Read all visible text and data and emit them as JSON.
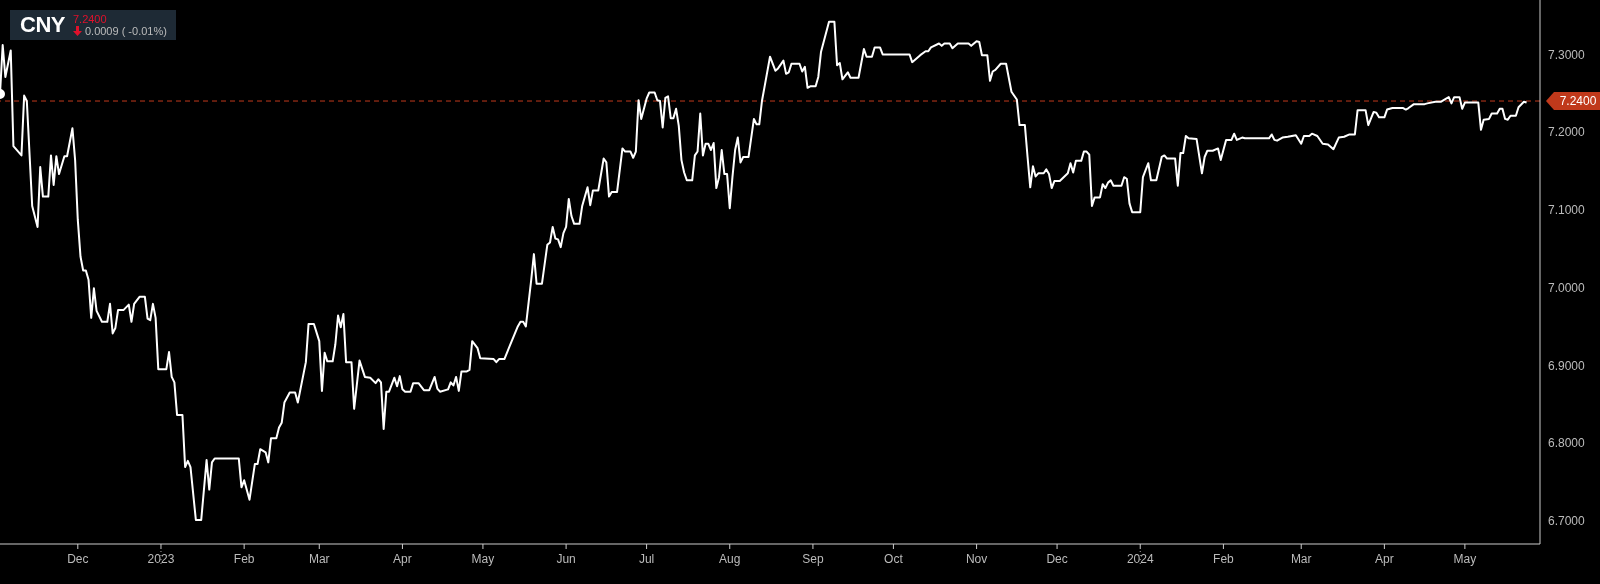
{
  "chart_data": {
    "type": "line",
    "title": "CNY",
    "subtitle": "7.2400",
    "annotations": [
      "0.0009 ( -0.01%)"
    ],
    "xlim": [
      "2022-11-02",
      "2024-05-29"
    ],
    "xticks": [
      {
        "value": "2022-12-01",
        "label": "Dec"
      },
      {
        "value": "2023-01-01",
        "label": "2023"
      },
      {
        "value": "2023-02-01",
        "label": "Feb"
      },
      {
        "value": "2023-03-01",
        "label": "Mar"
      },
      {
        "value": "2023-04-01",
        "label": "Apr"
      },
      {
        "value": "2023-05-01",
        "label": "May"
      },
      {
        "value": "2023-06-01",
        "label": "Jun"
      },
      {
        "value": "2023-07-01",
        "label": "Jul"
      },
      {
        "value": "2023-08-01",
        "label": "Aug"
      },
      {
        "value": "2023-09-01",
        "label": "Sep"
      },
      {
        "value": "2023-10-01",
        "label": "Oct"
      },
      {
        "value": "2023-11-01",
        "label": "Nov"
      },
      {
        "value": "2023-12-01",
        "label": "Dec"
      },
      {
        "value": "2024-01-01",
        "label": "2024"
      },
      {
        "value": "2024-02-01",
        "label": "Feb"
      },
      {
        "value": "2024-03-01",
        "label": "Mar"
      },
      {
        "value": "2024-04-01",
        "label": "Apr"
      },
      {
        "value": "2024-05-01",
        "label": "May"
      }
    ],
    "ylim": [
      6.67,
      7.37
    ],
    "yticks": [
      {
        "value": 6.7,
        "label": "6.7000"
      },
      {
        "value": 6.8,
        "label": "6.8000"
      },
      {
        "value": 6.9,
        "label": "6.9000"
      },
      {
        "value": 7.0,
        "label": "7.0000"
      },
      {
        "value": 7.1,
        "label": "7.1000"
      },
      {
        "value": 7.2,
        "label": "7.2000"
      },
      {
        "value": 7.3,
        "label": "7.3000"
      }
    ],
    "ref_lines": [
      {
        "axis": "y",
        "value": 7.24,
        "label": "7.2400",
        "color": "#c0391b",
        "line_style": "dashed"
      }
    ],
    "series": [
      {
        "color": "#ffffff",
        "x": [
          "2022-11-02",
          "2022-11-03",
          "2022-11-04",
          "2022-11-06",
          "2022-11-07",
          "2022-11-10",
          "2022-11-11",
          "2022-11-12",
          "2022-11-14",
          "2022-11-16",
          "2022-11-17",
          "2022-11-18",
          "2022-11-20",
          "2022-11-21",
          "2022-11-22",
          "2022-11-23",
          "2022-11-24",
          "2022-11-26",
          "2022-11-27",
          "2022-11-29",
          "2022-11-30",
          "2022-12-01",
          "2022-12-02",
          "2022-12-03",
          "2022-12-04",
          "2022-12-05",
          "2022-12-06",
          "2022-12-07",
          "2022-12-08",
          "2022-12-10",
          "2022-12-12",
          "2022-12-13",
          "2022-12-14",
          "2022-12-15",
          "2022-12-16",
          "2022-12-18",
          "2022-12-20",
          "2022-12-21",
          "2022-12-22",
          "2022-12-24",
          "2022-12-26",
          "2022-12-27",
          "2022-12-28",
          "2022-12-29",
          "2022-12-30",
          "2022-12-31",
          "2023-01-03",
          "2023-01-04",
          "2023-01-05",
          "2023-01-06",
          "2023-01-07",
          "2023-01-09",
          "2023-01-10",
          "2023-01-11",
          "2023-01-12",
          "2023-01-14",
          "2023-01-16",
          "2023-01-18",
          "2023-01-19",
          "2023-01-20",
          "2023-01-21",
          "2023-01-30",
          "2023-01-31",
          "2023-02-01",
          "2023-02-03",
          "2023-02-05",
          "2023-02-06",
          "2023-02-07",
          "2023-02-09",
          "2023-02-10",
          "2023-02-11",
          "2023-02-13",
          "2023-02-14",
          "2023-02-15",
          "2023-02-16",
          "2023-02-18",
          "2023-02-20",
          "2023-02-21",
          "2023-02-24",
          "2023-02-25",
          "2023-02-27",
          "2023-03-01",
          "2023-03-02",
          "2023-03-03",
          "2023-03-04",
          "2023-03-06",
          "2023-03-07",
          "2023-03-08",
          "2023-03-09",
          "2023-03-10",
          "2023-03-11",
          "2023-03-13",
          "2023-03-14",
          "2023-03-16",
          "2023-03-18",
          "2023-03-20",
          "2023-03-22",
          "2023-03-23",
          "2023-03-24",
          "2023-03-25",
          "2023-03-26",
          "2023-03-27",
          "2023-03-29",
          "2023-03-30",
          "2023-03-31",
          "2023-04-01",
          "2023-04-02",
          "2023-04-04",
          "2023-04-05",
          "2023-04-07",
          "2023-04-09",
          "2023-04-11",
          "2023-04-13",
          "2023-04-14",
          "2023-04-15",
          "2023-04-18",
          "2023-04-19",
          "2023-04-20",
          "2023-04-21",
          "2023-04-22",
          "2023-04-23",
          "2023-04-25",
          "2023-04-26",
          "2023-04-27",
          "2023-04-29",
          "2023-04-30",
          "2023-05-05",
          "2023-05-06",
          "2023-05-07",
          "2023-05-09",
          "2023-05-11",
          "2023-05-14",
          "2023-05-15",
          "2023-05-16",
          "2023-05-17",
          "2023-05-19",
          "2023-05-20",
          "2023-05-21",
          "2023-05-23",
          "2023-05-25",
          "2023-05-26",
          "2023-05-27",
          "2023-05-28",
          "2023-05-29",
          "2023-05-30",
          "2023-05-31",
          "2023-06-01",
          "2023-06-02",
          "2023-06-03",
          "2023-06-04",
          "2023-06-06",
          "2023-06-07",
          "2023-06-09",
          "2023-06-10",
          "2023-06-11",
          "2023-06-13",
          "2023-06-15",
          "2023-06-16",
          "2023-06-17",
          "2023-06-18",
          "2023-06-20",
          "2023-06-22",
          "2023-06-23",
          "2023-06-25",
          "2023-06-26",
          "2023-06-27",
          "2023-06-28",
          "2023-06-29",
          "2023-07-01",
          "2023-07-02",
          "2023-07-04",
          "2023-07-05",
          "2023-07-06",
          "2023-07-07",
          "2023-07-08",
          "2023-07-09",
          "2023-07-10",
          "2023-07-11",
          "2023-07-12",
          "2023-07-13",
          "2023-07-14",
          "2023-07-15",
          "2023-07-16",
          "2023-07-18",
          "2023-07-19",
          "2023-07-20",
          "2023-07-21",
          "2023-07-22",
          "2023-07-23",
          "2023-07-24",
          "2023-07-25",
          "2023-07-26",
          "2023-07-27",
          "2023-07-28",
          "2023-07-29",
          "2023-07-30",
          "2023-07-31",
          "2023-08-01",
          "2023-08-02",
          "2023-08-03",
          "2023-08-04",
          "2023-08-05",
          "2023-08-06",
          "2023-08-08",
          "2023-08-10",
          "2023-08-11",
          "2023-08-12",
          "2023-08-13",
          "2023-08-16",
          "2023-08-18",
          "2023-08-19",
          "2023-08-21",
          "2023-08-22",
          "2023-08-23",
          "2023-08-24",
          "2023-08-27",
          "2023-08-28",
          "2023-08-29",
          "2023-08-30",
          "2023-08-31",
          "2023-09-02",
          "2023-09-03",
          "2023-09-04",
          "2023-09-07",
          "2023-09-09",
          "2023-09-10",
          "2023-09-11",
          "2023-09-12",
          "2023-09-14",
          "2023-09-15",
          "2023-09-18",
          "2023-09-20",
          "2023-09-21",
          "2023-09-23",
          "2023-09-24",
          "2023-09-26",
          "2023-09-27",
          "2023-10-07",
          "2023-10-08",
          "2023-10-11",
          "2023-10-13",
          "2023-10-14",
          "2023-10-15",
          "2023-10-18",
          "2023-10-19",
          "2023-10-20",
          "2023-10-22",
          "2023-10-23",
          "2023-10-25",
          "2023-10-29",
          "2023-10-30",
          "2023-11-01",
          "2023-11-02",
          "2023-11-03",
          "2023-11-05",
          "2023-11-06",
          "2023-11-07",
          "2023-11-08",
          "2023-11-10",
          "2023-11-12",
          "2023-11-14",
          "2023-11-16",
          "2023-11-17",
          "2023-11-19",
          "2023-11-20",
          "2023-11-21",
          "2023-11-22",
          "2023-11-23",
          "2023-11-24",
          "2023-11-26",
          "2023-11-27",
          "2023-11-28",
          "2023-11-29",
          "2023-11-30",
          "2023-12-02",
          "2023-12-05",
          "2023-12-06",
          "2023-12-07",
          "2023-12-08",
          "2023-12-10",
          "2023-12-11",
          "2023-12-12",
          "2023-12-13",
          "2023-12-14",
          "2023-12-15",
          "2023-12-17",
          "2023-12-18",
          "2023-12-19",
          "2023-12-20",
          "2023-12-21",
          "2023-12-22",
          "2023-12-25",
          "2023-12-26",
          "2023-12-27",
          "2023-12-28",
          "2023-12-29",
          "2024-01-01",
          "2024-01-02",
          "2024-01-04",
          "2024-01-05",
          "2024-01-07",
          "2024-01-09",
          "2024-01-10",
          "2024-01-11",
          "2024-01-14",
          "2024-01-15",
          "2024-01-16",
          "2024-01-17",
          "2024-01-18",
          "2024-01-19",
          "2024-01-22",
          "2024-01-24",
          "2024-01-25",
          "2024-01-26",
          "2024-01-28",
          "2024-01-30",
          "2024-01-31",
          "2024-02-02",
          "2024-02-04",
          "2024-02-05",
          "2024-02-06",
          "2024-02-08",
          "2024-02-09",
          "2024-02-18",
          "2024-02-19",
          "2024-02-20",
          "2024-02-21",
          "2024-02-23",
          "2024-02-25",
          "2024-02-28",
          "2024-03-01",
          "2024-03-02",
          "2024-03-04",
          "2024-03-05",
          "2024-03-07",
          "2024-03-09",
          "2024-03-11",
          "2024-03-13",
          "2024-03-15",
          "2024-03-17",
          "2024-03-19",
          "2024-03-21",
          "2024-03-22",
          "2024-03-25",
          "2024-03-26",
          "2024-03-28",
          "2024-03-29",
          "2024-03-30",
          "2024-04-01",
          "2024-04-02",
          "2024-04-04",
          "2024-04-08",
          "2024-04-09",
          "2024-04-10",
          "2024-04-12",
          "2024-04-16",
          "2024-04-17",
          "2024-04-20",
          "2024-04-22",
          "2024-04-24",
          "2024-04-25",
          "2024-04-26",
          "2024-04-27",
          "2024-04-29",
          "2024-04-30",
          "2024-05-01",
          "2024-05-06",
          "2024-05-07",
          "2024-05-08",
          "2024-05-10",
          "2024-05-11",
          "2024-05-13",
          "2024-05-14",
          "2024-05-15",
          "2024-05-16",
          "2024-05-17",
          "2024-05-18",
          "2024-05-20",
          "2024-05-21",
          "2024-05-23",
          "2024-05-24"
        ],
        "values": [
          7.249,
          7.312,
          7.271,
          7.305,
          7.182,
          7.17,
          7.247,
          7.24,
          7.105,
          7.078,
          7.155,
          7.117,
          7.117,
          7.17,
          7.132,
          7.169,
          7.146,
          7.169,
          7.169,
          7.205,
          7.164,
          7.087,
          7.04,
          7.022,
          7.022,
          7.01,
          6.961,
          6.999,
          6.97,
          6.956,
          6.956,
          6.979,
          6.941,
          6.948,
          6.971,
          6.971,
          6.978,
          6.956,
          6.979,
          6.988,
          6.988,
          6.96,
          6.958,
          6.979,
          6.961,
          6.895,
          6.895,
          6.917,
          6.885,
          6.878,
          6.836,
          6.836,
          6.769,
          6.777,
          6.769,
          6.701,
          6.701,
          6.778,
          6.74,
          6.775,
          6.78,
          6.78,
          6.743,
          6.752,
          6.727,
          6.773,
          6.773,
          6.792,
          6.788,
          6.775,
          6.806,
          6.806,
          6.82,
          6.826,
          6.852,
          6.865,
          6.865,
          6.852,
          6.904,
          6.953,
          6.953,
          6.931,
          6.867,
          6.916,
          6.905,
          6.905,
          6.927,
          6.964,
          6.949,
          6.966,
          6.904,
          6.904,
          6.844,
          6.906,
          6.885,
          6.884,
          6.877,
          6.882,
          6.878,
          6.818,
          6.866,
          6.866,
          6.884,
          6.873,
          6.886,
          6.869,
          6.866,
          6.866,
          6.877,
          6.877,
          6.868,
          6.868,
          6.885,
          6.87,
          6.866,
          6.869,
          6.878,
          6.874,
          6.885,
          6.867,
          6.892,
          6.892,
          6.894,
          6.931,
          6.922,
          6.909,
          6.908,
          6.904,
          6.908,
          6.908,
          6.925,
          6.95,
          6.956,
          6.956,
          6.95,
          7.01,
          7.043,
          7.005,
          7.005,
          7.055,
          7.058,
          7.078,
          7.063,
          7.062,
          7.052,
          7.07,
          7.078,
          7.114,
          7.092,
          7.082,
          7.082,
          7.105,
          7.129,
          7.106,
          7.125,
          7.125,
          7.166,
          7.161,
          7.117,
          7.123,
          7.123,
          7.179,
          7.175,
          7.175,
          7.167,
          7.175,
          7.241,
          7.217,
          7.243,
          7.251,
          7.251,
          7.241,
          7.24,
          7.206,
          7.244,
          7.246,
          7.218,
          7.218,
          7.23,
          7.208,
          7.164,
          7.148,
          7.138,
          7.138,
          7.17,
          7.175,
          7.224,
          7.17,
          7.185,
          7.185,
          7.177,
          7.186,
          7.128,
          7.142,
          7.177,
          7.146,
          7.146,
          7.102,
          7.142,
          7.177,
          7.193,
          7.161,
          7.168,
          7.168,
          7.217,
          7.21,
          7.21,
          7.24,
          7.297,
          7.279,
          7.282,
          7.292,
          7.275,
          7.277,
          7.288,
          7.288,
          7.278,
          7.284,
          7.257,
          7.259,
          7.259,
          7.271,
          7.303,
          7.342,
          7.342,
          7.286,
          7.289,
          7.268,
          7.277,
          7.27,
          7.27,
          7.307,
          7.297,
          7.297,
          7.309,
          7.309,
          7.3,
          7.3,
          7.29,
          7.299,
          7.304,
          7.304,
          7.309,
          7.314,
          7.311,
          7.314,
          7.314,
          7.308,
          7.314,
          7.314,
          7.311,
          7.317,
          7.316,
          7.299,
          7.299,
          7.266,
          7.278,
          7.28,
          7.288,
          7.288,
          7.252,
          7.242,
          7.209,
          7.209,
          7.168,
          7.129,
          7.156,
          7.143,
          7.147,
          7.147,
          7.152,
          7.146,
          7.128,
          7.137,
          7.137,
          7.147,
          7.16,
          7.148,
          7.163,
          7.163,
          7.175,
          7.175,
          7.171,
          7.105,
          7.116,
          7.116,
          7.133,
          7.128,
          7.135,
          7.138,
          7.131,
          7.131,
          7.142,
          7.14,
          7.108,
          7.097,
          7.097,
          7.142,
          7.16,
          7.138,
          7.138,
          7.168,
          7.17,
          7.166,
          7.166,
          7.131,
          7.173,
          7.173,
          7.195,
          7.192,
          7.191,
          7.147,
          7.168,
          7.176,
          7.176,
          7.179,
          7.164,
          7.19,
          7.19,
          7.198,
          7.19,
          7.193,
          7.192,
          7.192,
          7.197,
          7.19,
          7.189,
          7.193,
          7.194,
          7.196,
          7.185,
          7.195,
          7.195,
          7.198,
          7.195,
          7.185,
          7.184,
          7.178,
          7.193,
          7.194,
          7.197,
          7.197,
          7.228,
          7.228,
          7.209,
          7.226,
          7.225,
          7.219,
          7.219,
          7.229,
          7.231,
          7.231,
          7.229,
          7.231,
          7.236,
          7.236,
          7.237,
          7.239,
          7.239,
          7.243,
          7.245,
          7.237,
          7.245,
          7.245,
          7.23,
          7.238,
          7.238,
          7.203,
          7.216,
          7.217,
          7.224,
          7.224,
          7.23,
          7.23,
          7.217,
          7.216,
          7.221,
          7.221,
          7.232,
          7.239,
          7.238
        ]
      }
    ]
  }
}
